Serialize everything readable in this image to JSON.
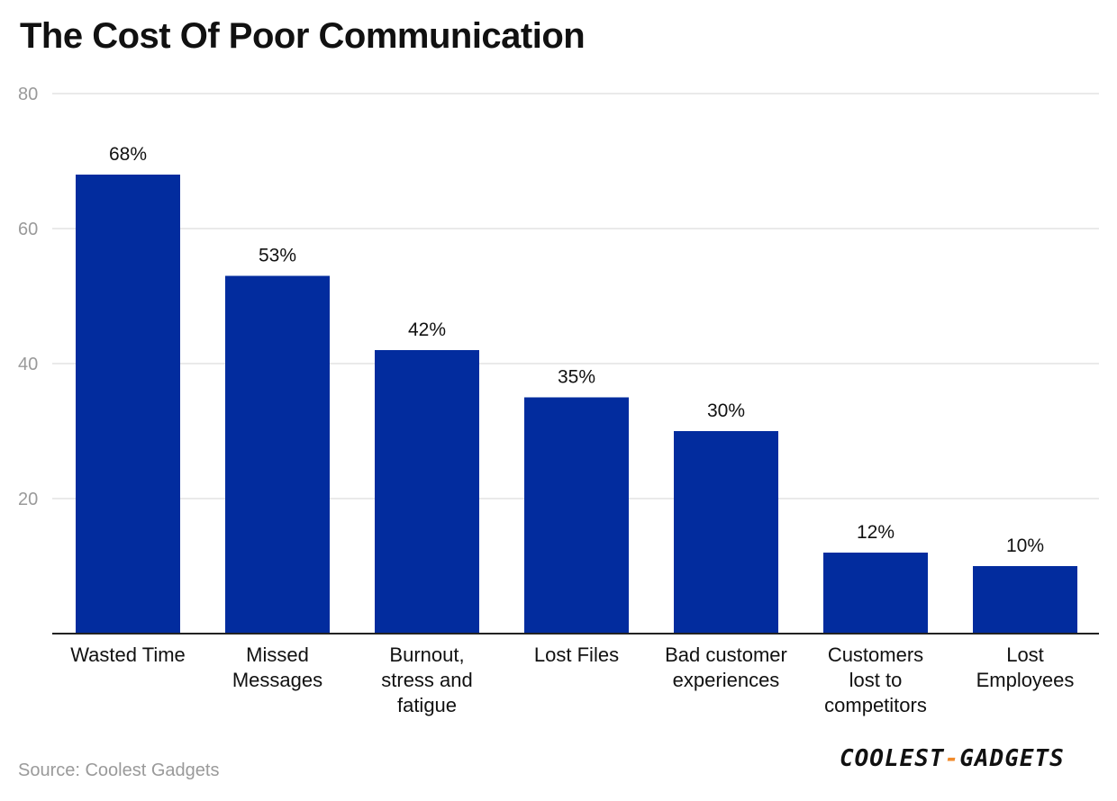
{
  "title": "The Cost Of Poor Communication",
  "source": "Source: Coolest Gadgets",
  "logo": {
    "left": "COOLEST",
    "dash": "-",
    "right": "GADGETS"
  },
  "colors": {
    "bar": "#022C9E",
    "grid": "#e3e3e3",
    "axis": "#222222",
    "tick": "#9a9a9a",
    "text": "#111111"
  },
  "chart_data": {
    "type": "bar",
    "title": "The Cost Of Poor Communication",
    "categories": [
      [
        "Wasted Time"
      ],
      [
        "Missed",
        "Messages"
      ],
      [
        "Burnout,",
        "stress and",
        "fatigue"
      ],
      [
        "Lost Files"
      ],
      [
        "Bad customer",
        "experiences"
      ],
      [
        "Customers",
        "lost to",
        "competitors"
      ],
      [
        "Lost",
        "Employees"
      ]
    ],
    "values": [
      68,
      53,
      42,
      35,
      30,
      12,
      10
    ],
    "data_labels": [
      "68%",
      "53%",
      "42%",
      "35%",
      "30%",
      "12%",
      "10%"
    ],
    "yticks": [
      20,
      40,
      60,
      80
    ],
    "ylim": [
      0,
      80
    ],
    "xlabel": "",
    "ylabel": "",
    "grid": true,
    "legend": "none"
  }
}
